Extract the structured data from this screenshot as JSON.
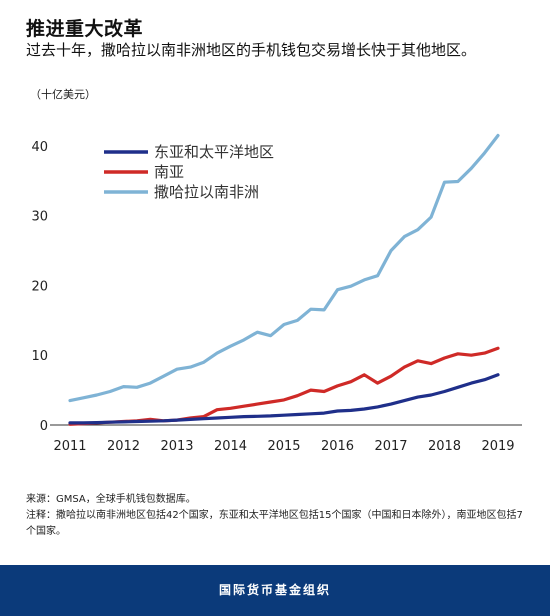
{
  "header": {
    "title": "推进重大改革",
    "subtitle": "过去十年，撒哈拉以南非洲地区的手机钱包交易增长快于其他地区。",
    "unit": "（十亿美元）"
  },
  "footnotes": {
    "source": "来源：GMSA，全球手机钱包数据库。",
    "note": "注释：撒哈拉以南非洲地区包括42个国家，东亚和太平洋地区包括15个国家（中国和日本除外），南亚地区包括7个国家。"
  },
  "footer": {
    "org": "国际货币基金组织"
  },
  "chart_data": {
    "type": "line",
    "x_tick_labels": [
      "2011",
      "2012",
      "2013",
      "2014",
      "2015",
      "2016",
      "2017",
      "2018",
      "2019"
    ],
    "y_tick_labels": [
      "0",
      "10",
      "20",
      "30",
      "40"
    ],
    "xlim": [
      2011,
      2019
    ],
    "ylim": [
      0,
      42
    ],
    "grid": false,
    "legend_position": "top-left",
    "series": [
      {
        "name": "东亚和太平洋地区",
        "color": "#1f2f8a",
        "x": [
          2011,
          2011.25,
          2011.5,
          2011.75,
          2012,
          2012.25,
          2012.5,
          2012.75,
          2013,
          2013.25,
          2013.5,
          2013.75,
          2014,
          2014.25,
          2014.5,
          2014.75,
          2015,
          2015.25,
          2015.5,
          2015.75,
          2016,
          2016.25,
          2016.5,
          2016.75,
          2017,
          2017.25,
          2017.5,
          2017.75,
          2018,
          2018.25,
          2018.5,
          2018.75,
          2019
        ],
        "values": [
          0.3,
          0.3,
          0.35,
          0.4,
          0.45,
          0.5,
          0.55,
          0.6,
          0.7,
          0.8,
          0.9,
          1.0,
          1.1,
          1.2,
          1.25,
          1.3,
          1.4,
          1.5,
          1.6,
          1.7,
          2.0,
          2.1,
          2.3,
          2.6,
          3.0,
          3.5,
          4.0,
          4.3,
          4.8,
          5.4,
          6.0,
          6.5,
          7.2
        ]
      },
      {
        "name": "南亚",
        "color": "#cf2a27",
        "x": [
          2011,
          2011.25,
          2011.5,
          2011.75,
          2012,
          2012.25,
          2012.5,
          2012.75,
          2013,
          2013.25,
          2013.5,
          2013.75,
          2014,
          2014.25,
          2014.5,
          2014.75,
          2015,
          2015.25,
          2015.5,
          2015.75,
          2016,
          2016.25,
          2016.5,
          2016.75,
          2017,
          2017.25,
          2017.5,
          2017.75,
          2018,
          2018.25,
          2018.5,
          2018.75,
          2019
        ],
        "values": [
          0.1,
          0.2,
          0.3,
          0.4,
          0.5,
          0.6,
          0.8,
          0.6,
          0.7,
          1.0,
          1.2,
          2.2,
          2.4,
          2.7,
          3.0,
          3.3,
          3.6,
          4.2,
          5.0,
          4.8,
          5.6,
          6.2,
          7.2,
          6.0,
          7.0,
          8.3,
          9.2,
          8.8,
          9.6,
          10.2,
          10.0,
          10.3,
          11.0
        ]
      },
      {
        "name": "撒哈拉以南非洲",
        "color": "#7fb3d5",
        "x": [
          2011,
          2011.25,
          2011.5,
          2011.75,
          2012,
          2012.25,
          2012.5,
          2012.75,
          2013,
          2013.25,
          2013.5,
          2013.75,
          2014,
          2014.25,
          2014.5,
          2014.75,
          2015,
          2015.25,
          2015.5,
          2015.75,
          2016,
          2016.25,
          2016.5,
          2016.75,
          2017,
          2017.25,
          2017.5,
          2017.75,
          2018,
          2018.25,
          2018.5,
          2018.75,
          2019
        ],
        "values": [
          3.5,
          3.9,
          4.3,
          4.8,
          5.5,
          5.4,
          6.0,
          7.0,
          8.0,
          8.3,
          9.0,
          10.3,
          11.3,
          12.2,
          13.3,
          12.8,
          14.4,
          15.0,
          16.6,
          16.5,
          19.4,
          19.9,
          20.8,
          21.4,
          25.0,
          27.0,
          28.0,
          29.8,
          34.8,
          34.9,
          36.8,
          39.0,
          41.5
        ]
      }
    ]
  }
}
